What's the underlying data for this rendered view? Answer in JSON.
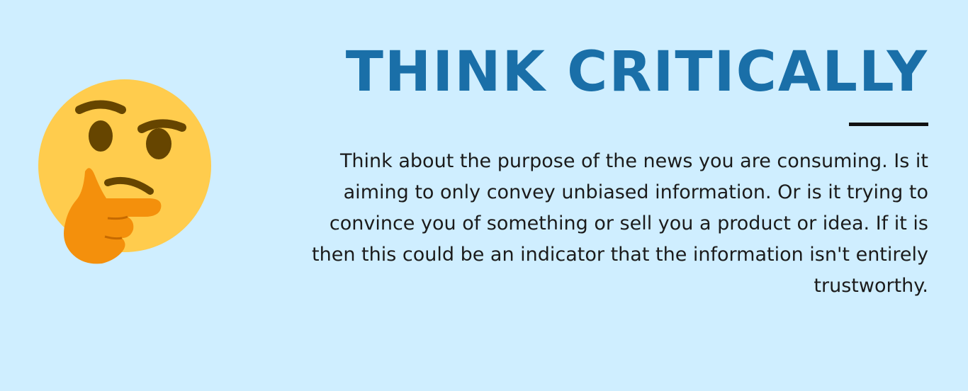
{
  "heading": {
    "title": "THINK CRITICALLY"
  },
  "body": {
    "text": "Think about the purpose of the news you are consuming. Is it aiming to only convey unbiased information.  Or is it trying to convince you of something or sell you a product or idea. If it is then this could be an indicator that the information isn't entirely trustworthy."
  },
  "colors": {
    "background": "#cfeeff",
    "title": "#1a6fa8",
    "divider": "#111111",
    "text": "#1b1b1b"
  },
  "icons": {
    "emoji": "thinking-face-icon"
  }
}
